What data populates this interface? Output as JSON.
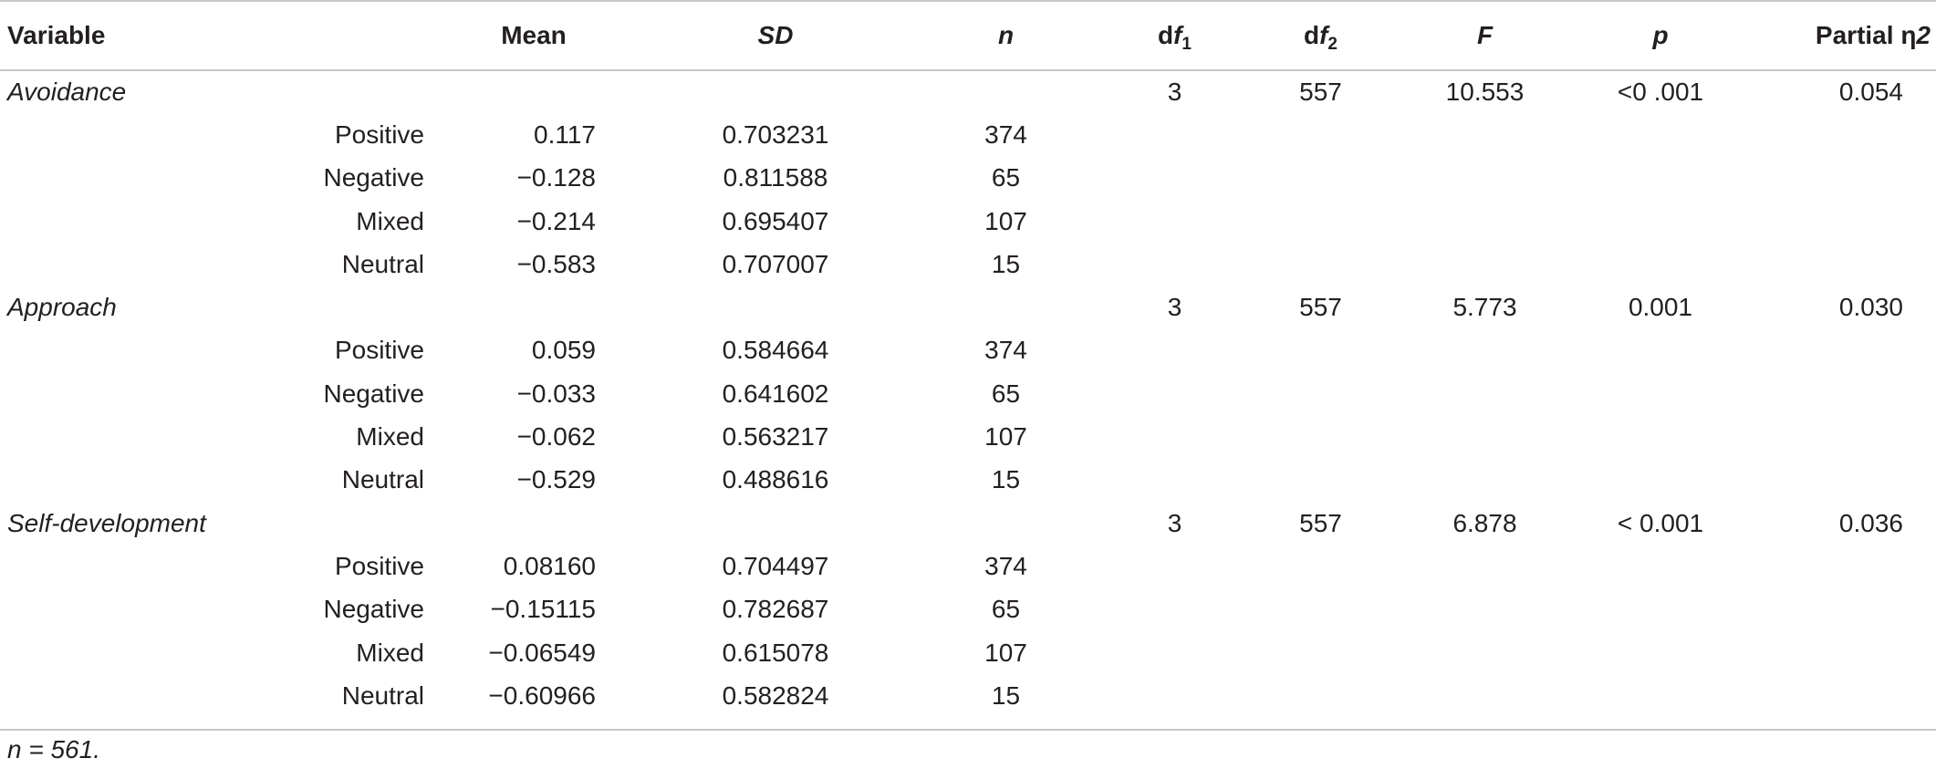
{
  "table": {
    "headers": {
      "variable": "Variable",
      "mean": "Mean",
      "sd": "SD",
      "n": "n",
      "df1_main": "d",
      "df1_italic": "f",
      "df1_sub": "1",
      "df2_main": "d",
      "df2_italic": "f",
      "df2_sub": "2",
      "f": "F",
      "p": "p",
      "eta_prefix": "Partial ",
      "eta_symbol": "η",
      "eta_suffix": "2"
    },
    "blocks": [
      {
        "variable": "Avoidance",
        "df1": "3",
        "df2": "557",
        "f": "10.553",
        "p": "<0 .001",
        "eta": "0.054",
        "rows": [
          {
            "group": "Positive",
            "mean": "0.117",
            "sd": "0.703231",
            "n": "374"
          },
          {
            "group": "Negative",
            "mean": "−0.128",
            "sd": "0.811588",
            "n": "65"
          },
          {
            "group": "Mixed",
            "mean": "−0.214",
            "sd": "0.695407",
            "n": "107"
          },
          {
            "group": "Neutral",
            "mean": "−0.583",
            "sd": "0.707007",
            "n": "15"
          }
        ]
      },
      {
        "variable": "Approach",
        "df1": "3",
        "df2": "557",
        "f": "5.773",
        "p": "0.001",
        "eta": "0.030",
        "rows": [
          {
            "group": "Positive",
            "mean": "0.059",
            "sd": "0.584664",
            "n": "374"
          },
          {
            "group": "Negative",
            "mean": "−0.033",
            "sd": "0.641602",
            "n": "65"
          },
          {
            "group": "Mixed",
            "mean": "−0.062",
            "sd": "0.563217",
            "n": "107"
          },
          {
            "group": "Neutral",
            "mean": "−0.529",
            "sd": "0.488616",
            "n": "15"
          }
        ]
      },
      {
        "variable": "Self-development",
        "df1": "3",
        "df2": "557",
        "f": "6.878",
        "p": "< 0.001",
        "eta": "0.036",
        "rows": [
          {
            "group": "Positive",
            "mean": "0.08160",
            "sd": "0.704497",
            "n": "374"
          },
          {
            "group": "Negative",
            "mean": "−0.15115",
            "sd": "0.782687",
            "n": "65"
          },
          {
            "group": "Mixed",
            "mean": "−0.06549",
            "sd": "0.615078",
            "n": "107"
          },
          {
            "group": "Neutral",
            "mean": "−0.60966",
            "sd": "0.582824",
            "n": "15"
          }
        ]
      }
    ],
    "footnote": "n = 561."
  }
}
